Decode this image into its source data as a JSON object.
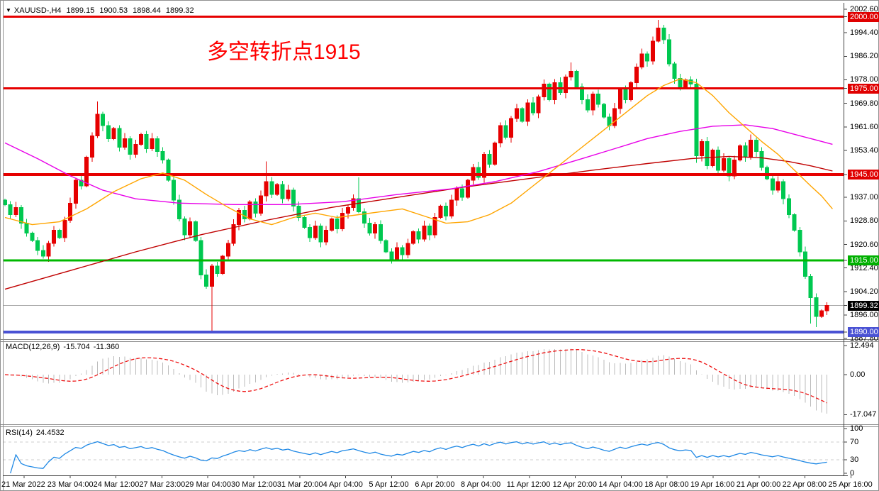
{
  "window": {
    "dropdown_icon": "▼",
    "symbol_period": "XAUUSD-,H4",
    "open": "1899.15",
    "high": "1900.53",
    "low": "1898.44",
    "close": "1899.32"
  },
  "annotation": {
    "text": "多空转折点1915",
    "color": "#ff0000"
  },
  "indicators": {
    "macd": {
      "label": "MACD(12,26,9)",
      "value": "-15.704",
      "signal": "-11.360",
      "axis_labels": [
        "12.494",
        "0.00",
        "-17.047"
      ],
      "axis_values": [
        12.494,
        0,
        -17.047
      ],
      "hist_color": "#bbbbbb",
      "signal_color": "#ee1111"
    },
    "rsi": {
      "label": "RSI(14)",
      "value": "24.4532",
      "axis_labels": [
        "100",
        "70",
        "30",
        "0"
      ],
      "axis_values": [
        100,
        70,
        30,
        0
      ],
      "levels": [
        70,
        30
      ],
      "color": "#1e88e5",
      "level_color": "#cccccc"
    }
  },
  "price_axis": {
    "scale_values": [
      2002.6,
      1994.4,
      1986.2,
      1978.0,
      1969.8,
      1961.6,
      1953.4,
      1945.0,
      1937.0,
      1928.8,
      1920.6,
      1912.4,
      1904.2,
      1896.0,
      1887.8
    ],
    "scale_labels": [
      "2002.60",
      "1994.40",
      "1986.20",
      "1978.00",
      "1969.80",
      "1961.60",
      "1953.40",
      "1945.00",
      "1937.00",
      "1928.80",
      "1920.60",
      "1912.40",
      "1904.20",
      "1896.00",
      "1887.80"
    ],
    "badges": [
      {
        "text": "2000.00",
        "value": 2000.0,
        "color": "#e00000"
      },
      {
        "text": "1975.00",
        "value": 1975.0,
        "color": "#e00000"
      },
      {
        "text": "1945.00",
        "value": 1945.0,
        "color": "#e00000"
      },
      {
        "text": "1915.00",
        "value": 1915.0,
        "color": "#00b000"
      },
      {
        "text": "1899.32",
        "value": 1899.32,
        "color": "#000000"
      },
      {
        "text": "1890.00",
        "value": 1890.0,
        "color": "#4a52d4"
      }
    ]
  },
  "x_axis": {
    "labels": [
      "21 Mar 2022",
      "23 Mar 04:00",
      "24 Mar 12:00",
      "27 Mar 23:00",
      "29 Mar 04:00",
      "30 Mar 12:00",
      "31 Mar 20:00",
      "4 Apr 04:00",
      "5 Apr 12:00",
      "6 Apr 20:00",
      "8 Apr 04:00",
      "11 Apr 12:00",
      "12 Apr 20:00",
      "14 Apr 04:00",
      "18 Apr 08:00",
      "19 Apr 16:00",
      "21 Apr 00:00",
      "22 Apr 08:00",
      "25 Apr 16:00"
    ]
  },
  "chart_data": [
    {
      "type": "candlestick",
      "symbol": "XAUUSD-",
      "timeframe": "H4",
      "ylim": [
        1887.8,
        2002.6
      ],
      "up_color": "#e60000",
      "down_color": "#00c850",
      "first_open": 1936.0,
      "closes": [
        1934.5,
        1931,
        1933.5,
        1928,
        1924.5,
        1922,
        1918.5,
        1916.5,
        1921,
        1925.5,
        1923,
        1929,
        1935,
        1943,
        1941,
        1951,
        1958.5,
        1966,
        1962,
        1957.5,
        1961,
        1954.5,
        1957.5,
        1952,
        1955.5,
        1959,
        1954,
        1957.5,
        1953,
        1950,
        1943,
        1936,
        1929.5,
        1924,
        1928.5,
        1922,
        1910,
        1906,
        1913,
        1910.5,
        1916.5,
        1921,
        1927.5,
        1932.5,
        1929.5,
        1935.5,
        1931.5,
        1937.5,
        1942.5,
        1938,
        1941.5,
        1936.5,
        1939.5,
        1934,
        1930,
        1926.5,
        1923,
        1927,
        1921.5,
        1925.5,
        1929.5,
        1926,
        1931.5,
        1933.5,
        1936.5,
        1932,
        1928,
        1924.5,
        1927.5,
        1922,
        1918,
        1915.5,
        1919.5,
        1917,
        1921,
        1925,
        1922.5,
        1927,
        1924,
        1930,
        1934,
        1930.5,
        1936,
        1940,
        1937,
        1943,
        1947.5,
        1944,
        1952,
        1948.5,
        1956,
        1962,
        1958,
        1964.5,
        1968,
        1963.5,
        1970,
        1966.5,
        1972,
        1976.5,
        1971,
        1977,
        1973.5,
        1979,
        1981,
        1975.5,
        1971,
        1967.5,
        1973,
        1969.5,
        1965,
        1962,
        1968,
        1974.5,
        1971,
        1977,
        1982.5,
        1987,
        1984.5,
        1991.5,
        1996,
        1992,
        1983.5,
        1978.5,
        1975.5,
        1978,
        1976.5,
        1951.5,
        1956.5,
        1948,
        1953.5,
        1946.5,
        1950.5,
        1944.5,
        1950,
        1955,
        1951,
        1957,
        1953,
        1947.5,
        1943.5,
        1939.5,
        1942.5,
        1936.5,
        1931,
        1925.5,
        1918,
        1909.5,
        1902,
        1895.5,
        1897.5,
        1899.3
      ],
      "high_overrides": {
        "17": 1970.5,
        "48": 1949.5,
        "65": 1944.0,
        "104": 1984.0,
        "120": 1998.9
      },
      "low_overrides": {
        "38": 1890.5,
        "127": 1949.0,
        "148": 1893.0,
        "149": 1891.8
      },
      "hlines": [
        {
          "value": 2000.0,
          "color": "#e60000",
          "width": 3
        },
        {
          "value": 1975.0,
          "color": "#e60000",
          "width": 3
        },
        {
          "value": 1945.0,
          "color": "#e60000",
          "width": 4
        },
        {
          "value": 1915.0,
          "color": "#00b800",
          "width": 3
        },
        {
          "value": 1890.0,
          "color": "#4a52d4",
          "width": 4
        }
      ],
      "current_price": {
        "value": 1899.32,
        "color": "#aaaaaa"
      },
      "moving_averages": [
        {
          "name": "ma-fast-orange",
          "color": "#ffa500",
          "points": [
            [
              0,
              1930
            ],
            [
              5,
              1927.5
            ],
            [
              10,
              1928.5
            ],
            [
              15,
              1933
            ],
            [
              20,
              1939
            ],
            [
              25,
              1943.5
            ],
            [
              29,
              1945.5
            ],
            [
              33,
              1943
            ],
            [
              37,
              1938
            ],
            [
              41,
              1933.5
            ],
            [
              45,
              1929.5
            ],
            [
              49,
              1927.5
            ],
            [
              53,
              1930
            ],
            [
              57,
              1931.5
            ],
            [
              61,
              1930
            ],
            [
              65,
              1931
            ],
            [
              69,
              1932
            ],
            [
              73,
              1933
            ],
            [
              77,
              1930.5
            ],
            [
              81,
              1928
            ],
            [
              85,
              1928.5
            ],
            [
              89,
              1931
            ],
            [
              93,
              1935
            ],
            [
              97,
              1941
            ],
            [
              101,
              1947
            ],
            [
              105,
              1953
            ],
            [
              109,
              1959
            ],
            [
              112,
              1963.5
            ],
            [
              115,
              1968
            ],
            [
              118,
              1972.5
            ],
            [
              121,
              1976
            ],
            [
              124,
              1978.3
            ],
            [
              127,
              1977
            ],
            [
              130,
              1972.5
            ],
            [
              133,
              1966.5
            ],
            [
              136,
              1961.5
            ],
            [
              139,
              1956.5
            ],
            [
              142,
              1952
            ],
            [
              145,
              1946.5
            ],
            [
              148,
              1941
            ],
            [
              150,
              1937.5
            ],
            [
              152,
              1933
            ]
          ]
        },
        {
          "name": "ma-mid-magenta",
          "color": "#e800e8",
          "points": [
            [
              0,
              1956
            ],
            [
              6,
              1950.5
            ],
            [
              12,
              1944.5
            ],
            [
              18,
              1939.5
            ],
            [
              24,
              1936.5
            ],
            [
              32,
              1935
            ],
            [
              42,
              1934.5
            ],
            [
              52,
              1934.5
            ],
            [
              62,
              1935.5
            ],
            [
              72,
              1938
            ],
            [
              82,
              1940
            ],
            [
              90,
              1942.5
            ],
            [
              98,
              1946
            ],
            [
              106,
              1950.5
            ],
            [
              112,
              1954
            ],
            [
              118,
              1957.5
            ],
            [
              124,
              1960
            ],
            [
              130,
              1961.8
            ],
            [
              136,
              1962.3
            ],
            [
              141,
              1961
            ],
            [
              146,
              1958.5
            ],
            [
              152,
              1955.5
            ]
          ]
        },
        {
          "name": "ma-slow-darkred",
          "color": "#c00000",
          "points": [
            [
              0,
              1905
            ],
            [
              12,
              1911.5
            ],
            [
              24,
              1918
            ],
            [
              36,
              1924
            ],
            [
              48,
              1929
            ],
            [
              60,
              1933.5
            ],
            [
              72,
              1937
            ],
            [
              84,
              1940.5
            ],
            [
              96,
              1943.5
            ],
            [
              108,
              1946.5
            ],
            [
              118,
              1948.8
            ],
            [
              126,
              1950.5
            ],
            [
              133,
              1951.3
            ],
            [
              139,
              1950.8
            ],
            [
              144,
              1949.5
            ],
            [
              148,
              1948
            ],
            [
              152,
              1946.2
            ]
          ]
        }
      ]
    },
    {
      "type": "macd",
      "params": [
        12,
        26,
        9
      ],
      "ylim": [
        -17.047,
        12.494
      ],
      "readout": [
        -15.704,
        -11.36
      ],
      "source": "closes of chart_data[0]"
    },
    {
      "type": "rsi",
      "period": 14,
      "ylim": [
        0,
        100
      ],
      "readout": 24.4532,
      "levels": [
        70,
        30
      ],
      "source": "closes of chart_data[0]"
    }
  ]
}
